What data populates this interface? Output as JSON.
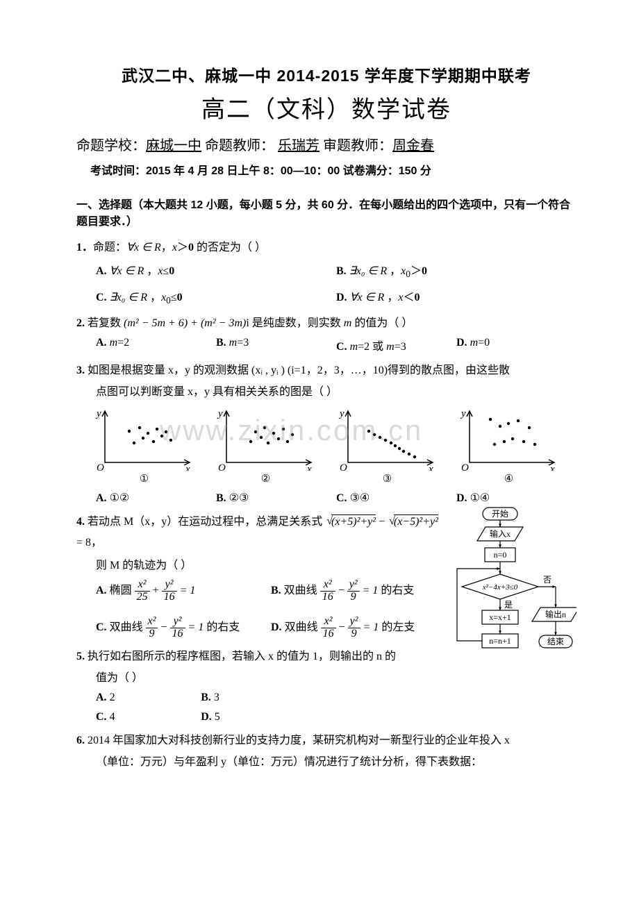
{
  "header": {
    "title1": "武汉二中、麻城一中 2014-2015 学年度下学期期中联考",
    "title2": "高二（文科）数学试卷",
    "info_prefix": "命题学校：",
    "school": "麻城一中",
    "info_teacher_label": " 命题教师： ",
    "teacher": "乐瑞芳",
    "info_reviewer_label": "  审题教师：",
    "reviewer": "周金春",
    "exam_time": "考试时间：2015 年 4 月 28 日上午 8：00—10：00     试卷满分：150 分"
  },
  "watermark": "www.zixin.com.cn",
  "section1": "一、选择题（本大题共 12 小题，每小题 5 分，共 60 分．在每小题给出的四个选项中，只有一个符合题目要求．）",
  "q1": {
    "num": "1．",
    "stem_a": "命题：",
    "stem_b": "∀x ∈ R",
    "stem_c": "，x＞0 的否定为（      ）",
    "optA_l": "A.  ",
    "optA": "∀x ∈ R ，x≤0",
    "optB_l": "B.  ",
    "optB": "∃x₀ ∈ R ，x₀＞0",
    "optC_l": "C.  ",
    "optC": "∃x₀ ∈ R ，x₀≤0",
    "optD_l": "D.  ",
    "optD": "∀x ∈ R ，x＜0"
  },
  "q2": {
    "num": "2.  ",
    "stem": "若复数 (m² − 5m + 6) + (m² − 3m)i 是纯虚数，则实数 m 的值为（      ）",
    "optA_l": "A. ",
    "optA": "m=2",
    "optB_l": "B. ",
    "optB": "m=3",
    "optC_l": "C. ",
    "optC": "m=2 或 m=3",
    "optD_l": "D. ",
    "optD": "m=0"
  },
  "q3": {
    "num": "3.  ",
    "stem1": "如图是根据变量 x，y 的观测数据 (xᵢ , yᵢ ) (i=1，2，3，…，10)得到的散点图，由这些散",
    "stem2": "点图可以判断变量 x，y 具有相关关系的图是（      ）",
    "labels": [
      "①",
      "②",
      "③",
      "④"
    ],
    "optA_l": "A. ",
    "optA": "①②",
    "optB_l": "B. ",
    "optB": "②③",
    "optC_l": "C. ",
    "optC": "③④",
    "optD_l": "D. ",
    "optD": "①④",
    "scatter": {
      "axis_color": "#000000",
      "point_color": "#000000",
      "plot1": [
        [
          35,
          45
        ],
        [
          42,
          28
        ],
        [
          50,
          50
        ],
        [
          55,
          35
        ],
        [
          62,
          42
        ],
        [
          70,
          30
        ],
        [
          75,
          48
        ],
        [
          82,
          38
        ],
        [
          88,
          44
        ],
        [
          95,
          32
        ]
      ],
      "plot2": [
        [
          35,
          30
        ],
        [
          42,
          44
        ],
        [
          50,
          36
        ],
        [
          55,
          50
        ],
        [
          60,
          28
        ],
        [
          68,
          42
        ],
        [
          75,
          34
        ],
        [
          82,
          48
        ],
        [
          88,
          30
        ],
        [
          95,
          40
        ]
      ],
      "plot3": [
        [
          30,
          25
        ],
        [
          38,
          30
        ],
        [
          46,
          34
        ],
        [
          54,
          38
        ],
        [
          62,
          42
        ],
        [
          68,
          46
        ],
        [
          74,
          50
        ],
        [
          80,
          54
        ],
        [
          88,
          58
        ],
        [
          96,
          62
        ]
      ],
      "plot4": [
        [
          30,
          62
        ],
        [
          36,
          26
        ],
        [
          44,
          52
        ],
        [
          50,
          30
        ],
        [
          56,
          56
        ],
        [
          62,
          34
        ],
        [
          70,
          60
        ],
        [
          78,
          30
        ],
        [
          86,
          50
        ],
        [
          94,
          26
        ]
      ]
    }
  },
  "q4": {
    "num": "4.  ",
    "stem1": "若动点 M（x，y）在运动过程中，总满足关系式 ",
    "stem_math": "√((x+5)²+y²) − √((x−5)²+y²) = 8",
    "stem1_end": "，",
    "stem2": "则 M 的轨迹为（      ）",
    "optA_l": "A. ",
    "optA_pre": "椭圆 ",
    "optA_frac": [
      "x²",
      "25",
      "y²",
      "16"
    ],
    "optA_post": " = 1",
    "optB_l": "B. ",
    "optB_pre": "双曲线 ",
    "optB_frac": [
      "x²",
      "16",
      "y²",
      "9"
    ],
    "optB_post": " = 1 的右支",
    "optC_l": "C. ",
    "optC_pre": "双曲线 ",
    "optC_frac": [
      "x²",
      "9",
      "y²",
      "16"
    ],
    "optC_post": " = 1 的右支",
    "optD_l": "D. ",
    "optD_pre": "双曲线 ",
    "optD_frac": [
      "x²",
      "16",
      "y²",
      "9"
    ],
    "optD_post": " = 1 的左支"
  },
  "q5": {
    "num": "5.  ",
    "stem1": "执行如右图所示的程序框图，若输入 x 的值为 1，则输出的 n 的",
    "stem2": "值为（      ）",
    "optA_l": "A. ",
    "optA": "2",
    "optB_l": "B. ",
    "optB": "3",
    "optC_l": "C. ",
    "optC": "4",
    "optD_l": "D. ",
    "optD": "5"
  },
  "q6": {
    "num": "6. ",
    "stem1": "2014 年国家加大对科技创新行业的支持力度，某研究机构对一新型行业的企业年投入 x",
    "stem2": "（单位：万元）与年盈利 y（单位：万元）情况进行了统计分析，得下表数据："
  },
  "flowchart": {
    "nodes": {
      "start": "开始",
      "input": "输入x",
      "init": "n=0",
      "cond": "x²−4x+3≤0",
      "stepx": "x=x+1",
      "stepn": "n=n+1",
      "output": "输出n",
      "end": "结束"
    },
    "edge_labels": {
      "yes": "是",
      "no": "否"
    },
    "colors": {
      "stroke": "#000000",
      "fill": "#ffffff",
      "text": "#000000"
    }
  }
}
